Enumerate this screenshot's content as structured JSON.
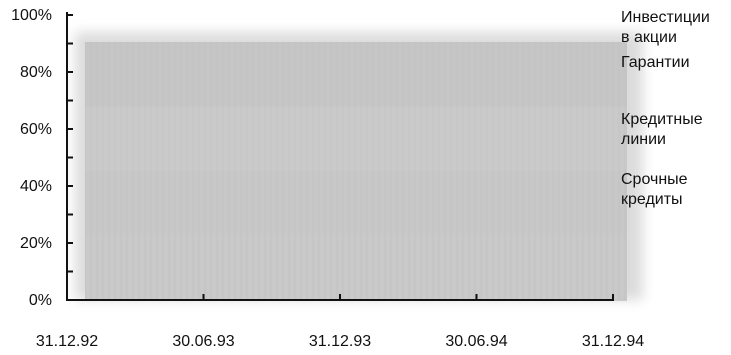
{
  "chart_data": {
    "type": "area",
    "stacked_percent": true,
    "x_ticks": [
      "31.12.92",
      "30.06.93",
      "31.12.93",
      "30.06.94",
      "31.12.94"
    ],
    "y_ticks": [
      "0%",
      "20%",
      "40%",
      "60%",
      "80%",
      "100%"
    ],
    "ylim": [
      0,
      100
    ],
    "grid": false,
    "legend_position": "right",
    "series": [
      {
        "name": "Инвестиции\nв акции",
        "color": "#c4c4c4"
      },
      {
        "name": "Гарантии",
        "color": "#cacaca"
      },
      {
        "name": "Кредитные\nлинии",
        "color": "#c6c6c6"
      },
      {
        "name": "Срочные\nкредиты",
        "color": "#c8c8c8"
      }
    ],
    "colors": {
      "axis": "#111111",
      "area_fill": "#c6c6c6",
      "area_blur": "#d8d8d8"
    }
  }
}
